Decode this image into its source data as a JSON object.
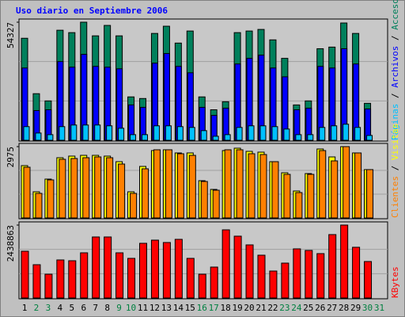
{
  "chart_data": [
    {
      "type": "bar",
      "title": "Uso diario en Septiembre 2006",
      "ylim": [
        0,
        54327
      ],
      "yticks": [
        54327
      ],
      "legend_separator": "/",
      "series": [
        {
          "name": "Accesos",
          "color": "#00805c",
          "values": [
            46935,
            21440,
            18110,
            50630,
            49530,
            54327,
            48050,
            52850,
            48050,
            19960,
            19220,
            49160,
            52480,
            44720,
            50270,
            19960,
            14040,
            17740,
            49530,
            50270,
            51000,
            46200,
            37700,
            16260,
            18110,
            42130,
            42870,
            53960,
            49160,
            17000,
            null
          ]
        },
        {
          "name": "Archivos",
          "color": "#0000ff",
          "values": [
            33260,
            13670,
            14040,
            36220,
            33630,
            39550,
            34000,
            33630,
            32890,
            16260,
            15150,
            35480,
            39920,
            34000,
            31050,
            15150,
            11460,
            14780,
            35110,
            37700,
            39180,
            33260,
            29200,
            14040,
            14780,
            34000,
            33260,
            42130,
            35110,
            14410,
            null
          ]
        },
        {
          "name": "Páginas",
          "color": "#00c0ff",
          "values": [
            6280,
            3330,
            2590,
            6280,
            7020,
            7020,
            7020,
            6650,
            5540,
            2590,
            2590,
            6650,
            6650,
            6280,
            5910,
            4440,
            1850,
            2590,
            5910,
            6650,
            6650,
            6280,
            5170,
            2590,
            2590,
            5910,
            6650,
            7390,
            5910,
            2220,
            null
          ]
        }
      ]
    },
    {
      "type": "bar",
      "ylim": [
        0,
        2975
      ],
      "yticks": [
        2975
      ],
      "legend_separator": "/",
      "series": [
        {
          "name": "Visitas",
          "color": "#ffff00",
          "values": [
            2182,
            1091,
            1620,
            2512,
            2579,
            2611,
            2611,
            2579,
            2347,
            1091,
            2149,
            2810,
            2843,
            2711,
            2711,
            1554,
            1190,
            2810,
            2909,
            2777,
            2744,
            2347,
            1884,
            1124,
            1851,
            2876,
            2545,
            2975,
            2711,
            2016,
            null
          ]
        },
        {
          "name": "Clientes",
          "color": "#ff8000",
          "values": [
            2116,
            1025,
            1587,
            2446,
            2479,
            2512,
            2545,
            2512,
            2248,
            1025,
            2050,
            2843,
            2843,
            2678,
            2611,
            1521,
            1157,
            2843,
            2843,
            2678,
            2645,
            2347,
            1818,
            1058,
            1818,
            2810,
            2380,
            2975,
            2711,
            2016,
            null
          ]
        }
      ]
    },
    {
      "type": "bar",
      "ylim": [
        0,
        2438863
      ],
      "yticks": [
        2438863
      ],
      "categories": [
        "1",
        "2",
        "3",
        "4",
        "5",
        "6",
        "7",
        "8",
        "9",
        "10",
        "11",
        "12",
        "13",
        "14",
        "15",
        "16",
        "17",
        "18",
        "19",
        "20",
        "21",
        "22",
        "23",
        "24",
        "25",
        "26",
        "27",
        "28",
        "29",
        "30",
        "31"
      ],
      "highlight_categories": [
        "2",
        "3",
        "9",
        "10",
        "16",
        "17",
        "23",
        "24",
        "30",
        "31"
      ],
      "highlight_color": "#008040",
      "series": [
        {
          "name": "KBytes",
          "color": "#ff0000",
          "values": [
            1564030,
            1113380,
            795270,
            1272430,
            1245920,
            1511010,
            2041190,
            2041190,
            1511010,
            1325450,
            1829120,
            1935160,
            1855630,
            1961670,
            1325450,
            795270,
            1033850,
            2279770,
            2067700,
            1776100,
            1431490,
            901310,
            1166400,
            1643560,
            1590540,
            1484500,
            2120720,
            2438863,
            1696580,
            1219410,
            null
          ]
        }
      ]
    }
  ]
}
